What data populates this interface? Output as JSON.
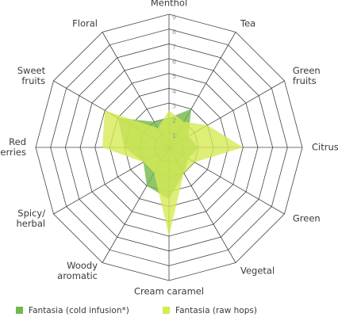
{
  "chart_data": {
    "type": "radar",
    "categories": [
      [
        "Menthol"
      ],
      [
        "Tea"
      ],
      [
        "Green",
        "fruits"
      ],
      [
        "Citrus"
      ],
      [
        "Green"
      ],
      [
        "Vegetal"
      ],
      [
        "Cream caramel"
      ],
      [
        "Woody",
        "aromatic"
      ],
      [
        "Spicy/",
        "herbal"
      ],
      [
        "Red",
        "berries"
      ],
      [
        "Sweet",
        "fruits"
      ],
      [
        "Floral"
      ]
    ],
    "rlim": [
      0,
      9
    ],
    "rticks": [
      1,
      2,
      3,
      4,
      5,
      6,
      7,
      8,
      9
    ],
    "grid": true,
    "series": [
      {
        "name": "Fantasia (cold infusion*)",
        "color": "#72b84a",
        "values": [
          2,
          3,
          1.5,
          2,
          1.5,
          2,
          3.5,
          3,
          2,
          3,
          4,
          2
        ]
      },
      {
        "name": "Fantasia (raw hops)",
        "color": "#d6ea55",
        "values": [
          2.5,
          2,
          3,
          5,
          2,
          2,
          6,
          2,
          2,
          4.5,
          5,
          1.5
        ]
      }
    ]
  }
}
